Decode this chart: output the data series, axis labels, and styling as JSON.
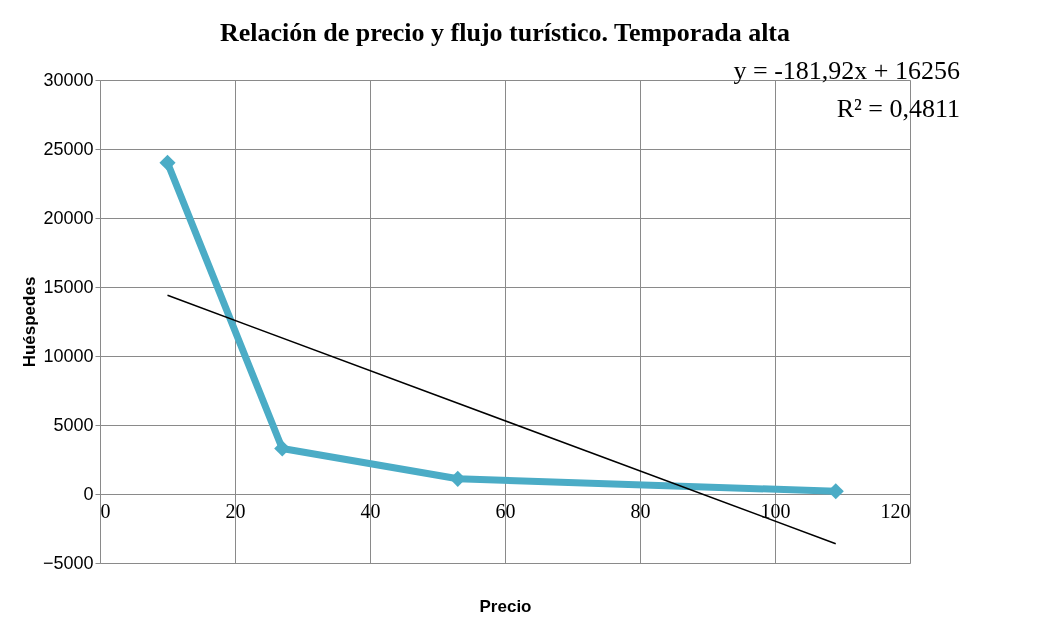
{
  "chart_data": {
    "type": "line",
    "title": "Relación de precio y flujo turístico. Temporada alta",
    "xlabel": "Precio",
    "ylabel": "Huéspedes",
    "series": [
      {
        "color": "#4bacc6",
        "marker": "diamond",
        "x": [
          10,
          27,
          53,
          109
        ],
        "values": [
          24000,
          3300,
          1100,
          200
        ]
      },
      {
        "color": "#000000",
        "marker": "none",
        "x": [
          10,
          109
        ],
        "values": [
          14400,
          -3600
        ]
      }
    ],
    "annotations": [
      "y = -181,92x + 16256",
      "R² = 0,4811"
    ],
    "xlim": [
      0,
      120
    ],
    "xticks": [
      0,
      20,
      40,
      60,
      80,
      100,
      120
    ],
    "ylim": [
      -5000,
      30000
    ],
    "yticks": [
      -5000,
      0,
      5000,
      10000,
      15000,
      20000,
      25000,
      30000
    ],
    "grid": true,
    "legend": false
  }
}
